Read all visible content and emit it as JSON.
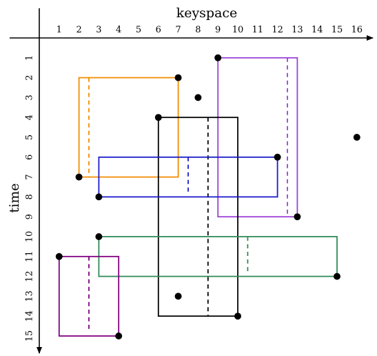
{
  "x_axis": {
    "label": "keyspace",
    "ticks": [
      "1",
      "2",
      "3",
      "4",
      "5",
      "6",
      "7",
      "8",
      "9",
      "10",
      "11",
      "12",
      "13",
      "14",
      "15",
      "16"
    ]
  },
  "y_axis": {
    "label": "time",
    "ticks": [
      "1",
      "2",
      "3",
      "4",
      "5",
      "6",
      "7",
      "8",
      "9",
      "10",
      "11",
      "12",
      "13",
      "14",
      "15"
    ]
  },
  "rectangles": [
    {
      "name": "orange",
      "color": "#f28c00",
      "x1": 2,
      "x2": 7,
      "y1": 2,
      "y2": 7,
      "dash_x": 2.5,
      "dash_y1": 2,
      "dash_y2": 7
    },
    {
      "name": "purple",
      "color": "#9b3fd6",
      "x1": 9,
      "x2": 13,
      "y1": 1,
      "y2": 9,
      "dash_x": 12.5,
      "dash_y1": 1,
      "dash_y2": 9
    },
    {
      "name": "black",
      "color": "#000000",
      "x1": 6,
      "x2": 10,
      "y1": 4,
      "y2": 14,
      "dash_x": 8.5,
      "dash_y1": 4,
      "dash_y2": 14
    },
    {
      "name": "blue",
      "color": "#1a1acc",
      "x1": 3,
      "x2": 12,
      "y1": 6,
      "y2": 8,
      "dash_x": 7.5,
      "dash_y1": 6,
      "dash_y2": 7.75
    },
    {
      "name": "green",
      "color": "#2e8b57",
      "x1": 3,
      "x2": 15,
      "y1": 10,
      "y2": 12,
      "dash_x": 10.5,
      "dash_y1": 10,
      "dash_y2": 11.75
    },
    {
      "name": "magenta",
      "color": "#800080",
      "x1": 1,
      "x2": 4,
      "y1": 11,
      "y2": 15,
      "dash_x": 2.5,
      "dash_y1": 11,
      "dash_y2": 14.75
    }
  ],
  "points": [
    {
      "x": 9,
      "y": 1
    },
    {
      "x": 7,
      "y": 2
    },
    {
      "x": 8,
      "y": 3
    },
    {
      "x": 6,
      "y": 4
    },
    {
      "x": 16,
      "y": 5
    },
    {
      "x": 12,
      "y": 6
    },
    {
      "x": 2,
      "y": 7
    },
    {
      "x": 3,
      "y": 8
    },
    {
      "x": 13,
      "y": 9
    },
    {
      "x": 3,
      "y": 10
    },
    {
      "x": 1,
      "y": 11
    },
    {
      "x": 15,
      "y": 12
    },
    {
      "x": 7,
      "y": 13
    },
    {
      "x": 10,
      "y": 14
    },
    {
      "x": 4,
      "y": 15
    }
  ]
}
